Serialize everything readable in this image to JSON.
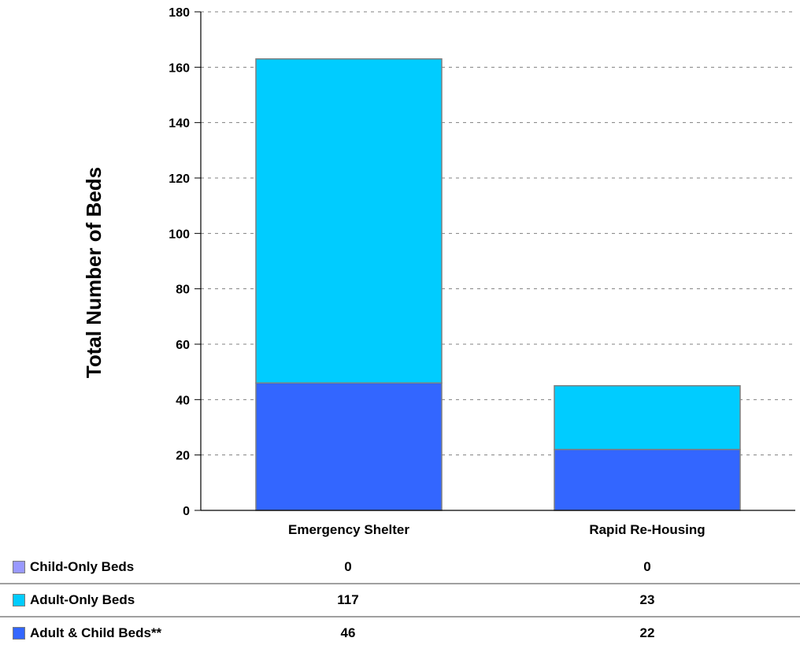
{
  "chart_data": {
    "type": "bar",
    "stacked": true,
    "categories": [
      "Emergency Shelter",
      "Rapid Re-Housing"
    ],
    "series": [
      {
        "name": "Child-Only Beds",
        "color": "#9999ff",
        "values": [
          0,
          0
        ]
      },
      {
        "name": "Adult-Only Beds",
        "color": "#00ccff",
        "values": [
          117,
          23
        ]
      },
      {
        "name": "Adult & Child Beds**",
        "color": "#3366ff",
        "values": [
          46,
          22
        ]
      }
    ],
    "stack_order": [
      "Adult & Child Beds**",
      "Adult-Only Beds",
      "Child-Only Beds"
    ],
    "ylabel": "Total Number of Beds",
    "xlabel": "",
    "ylim": [
      0,
      180
    ],
    "yticks": [
      0,
      20,
      40,
      60,
      80,
      100,
      120,
      140,
      160,
      180
    ],
    "grid": "horizontal-dashed",
    "legend": "data-table-below"
  }
}
